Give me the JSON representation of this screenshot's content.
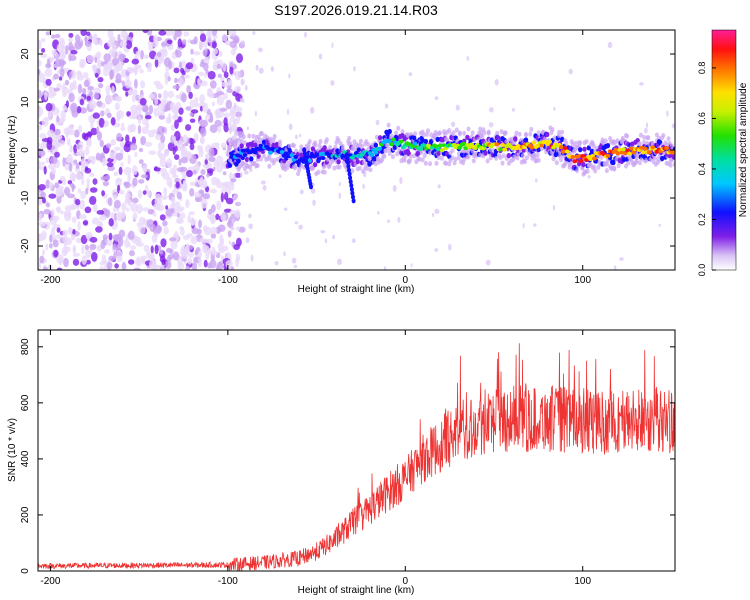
{
  "title": "S197.2026.019.21.14.R03",
  "chart_data": [
    {
      "type": "heatmap",
      "title": "S197.2026.019.21.14.R03",
      "xlabel": "Height of straight line (km)",
      "ylabel": "Frequency (Hz)",
      "xlim": [
        -207,
        152
      ],
      "ylim": [
        -25,
        25
      ],
      "xticks": [
        "-200",
        "-100",
        "0",
        "100"
      ],
      "yticks": [
        "20",
        "10",
        "0",
        "-10",
        "-20"
      ],
      "colorbar": {
        "label": "Normalized spectral amplitude",
        "range": [
          0,
          0.95
        ],
        "ticks": [
          "0.0",
          "0.2",
          "0.4",
          "0.6",
          "0.8"
        ]
      },
      "signal_track": {
        "x": [
          -100,
          -80,
          -60,
          -40,
          -20,
          -10,
          0,
          20,
          40,
          60,
          80,
          90,
          95,
          110,
          130,
          150
        ],
        "freq": [
          -1.5,
          0.5,
          -2,
          -1,
          -1,
          2,
          1,
          0.5,
          1,
          0.5,
          1.5,
          0,
          -2,
          -1,
          0,
          0
        ]
      },
      "noise_region_x": [
        -207,
        -100
      ]
    },
    {
      "type": "line",
      "xlabel": "Height of straight line (km)",
      "ylabel": "SNR (10 * v/v)",
      "xlim": [
        -207,
        152
      ],
      "ylim": [
        0,
        860
      ],
      "xticks": [
        "-200",
        "-100",
        "0",
        "100"
      ],
      "yticks": [
        "0",
        "200",
        "400",
        "600",
        "800"
      ],
      "color": "#ee3333",
      "series": [
        {
          "name": "SNR",
          "x": [
            -207,
            -150,
            -100,
            -80,
            -60,
            -50,
            -40,
            -30,
            -20,
            -10,
            0,
            10,
            20,
            30,
            40,
            50,
            60,
            70,
            80,
            90,
            100,
            110,
            120,
            130,
            140,
            152
          ],
          "values": [
            18,
            20,
            22,
            30,
            45,
            70,
            110,
            170,
            220,
            280,
            330,
            400,
            450,
            500,
            520,
            540,
            545,
            540,
            545,
            540,
            535,
            530,
            535,
            535,
            540,
            535
          ]
        }
      ]
    }
  ]
}
